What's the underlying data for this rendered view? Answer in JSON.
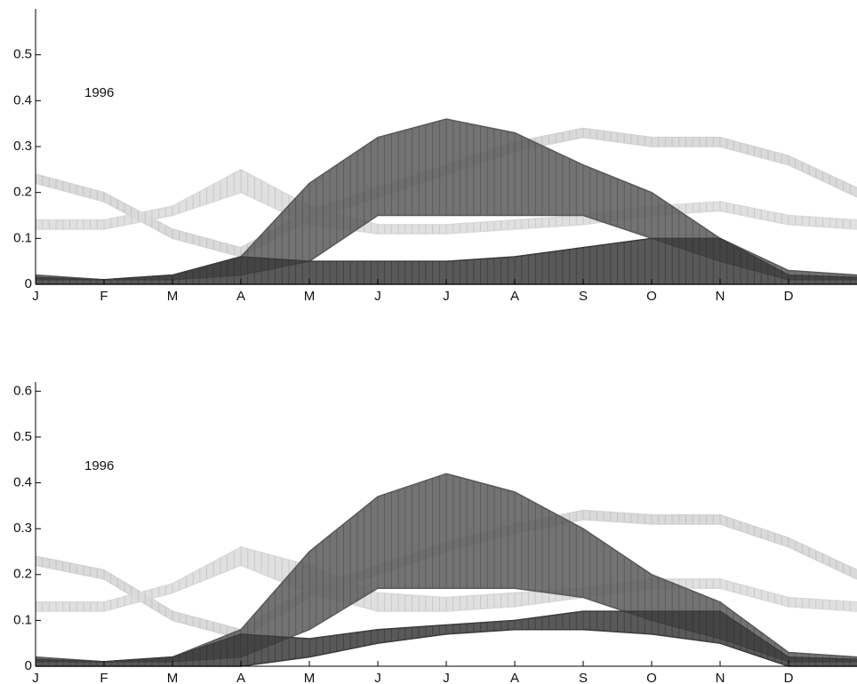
{
  "chart_data": [
    {
      "type": "band",
      "annotation": "1996",
      "xlim": [
        0,
        12
      ],
      "xticks": [
        {
          "value": 0,
          "label": "J"
        },
        {
          "value": 1,
          "label": "F"
        },
        {
          "value": 2,
          "label": "M"
        },
        {
          "value": 3,
          "label": "A"
        },
        {
          "value": 4,
          "label": "M"
        },
        {
          "value": 5,
          "label": "J"
        },
        {
          "value": 6,
          "label": "J"
        },
        {
          "value": 7,
          "label": "A"
        },
        {
          "value": 8,
          "label": "S"
        },
        {
          "value": 9,
          "label": "O"
        },
        {
          "value": 10,
          "label": "N"
        },
        {
          "value": 11,
          "label": "D"
        }
      ],
      "ylim": [
        0,
        0.6
      ],
      "yticks": [
        0,
        0.1,
        0.2,
        0.3,
        0.4,
        0.5
      ],
      "x": [
        0,
        1,
        2,
        3,
        4,
        5,
        6,
        7,
        8,
        9,
        10,
        11,
        12
      ],
      "series": [
        {
          "color": "#d4d4d4",
          "upper": [
            0.24,
            0.2,
            0.12,
            0.08,
            0.16,
            0.21,
            0.26,
            0.31,
            0.34,
            0.32,
            0.32,
            0.28,
            0.21
          ],
          "lower": [
            0.22,
            0.18,
            0.1,
            0.06,
            0.14,
            0.19,
            0.24,
            0.29,
            0.32,
            0.3,
            0.3,
            0.26,
            0.19
          ]
        },
        {
          "color": "#dadada",
          "upper": [
            0.14,
            0.14,
            0.17,
            0.25,
            0.17,
            0.13,
            0.13,
            0.14,
            0.15,
            0.17,
            0.18,
            0.15,
            0.14
          ],
          "lower": [
            0.12,
            0.12,
            0.15,
            0.2,
            0.13,
            0.11,
            0.11,
            0.12,
            0.13,
            0.15,
            0.16,
            0.13,
            0.12
          ]
        },
        {
          "color": "#5a5a5a",
          "upper": [
            0.02,
            0.01,
            0.02,
            0.06,
            0.22,
            0.32,
            0.36,
            0.33,
            0.26,
            0.2,
            0.1,
            0.03,
            0.02
          ],
          "lower": [
            0.01,
            0.01,
            0.01,
            0.02,
            0.05,
            0.15,
            0.15,
            0.15,
            0.15,
            0.1,
            0.05,
            0.01,
            0.01
          ]
        },
        {
          "color": "#3c3c3c",
          "upper": [
            0.015,
            0.01,
            0.02,
            0.06,
            0.05,
            0.05,
            0.05,
            0.06,
            0.08,
            0.1,
            0.1,
            0.02,
            0.015
          ],
          "lower": [
            0,
            0,
            0,
            0,
            0,
            0,
            0,
            0,
            0,
            0,
            0,
            0,
            0
          ]
        }
      ]
    },
    {
      "type": "band",
      "annotation": "1996",
      "xlim": [
        0,
        12
      ],
      "xticks": [
        {
          "value": 0,
          "label": "J"
        },
        {
          "value": 1,
          "label": "F"
        },
        {
          "value": 2,
          "label": "M"
        },
        {
          "value": 3,
          "label": "A"
        },
        {
          "value": 4,
          "label": "M"
        },
        {
          "value": 5,
          "label": "J"
        },
        {
          "value": 6,
          "label": "J"
        },
        {
          "value": 7,
          "label": "A"
        },
        {
          "value": 8,
          "label": "S"
        },
        {
          "value": 9,
          "label": "O"
        },
        {
          "value": 10,
          "label": "N"
        },
        {
          "value": 11,
          "label": "D"
        }
      ],
      "ylim": [
        0,
        0.62
      ],
      "yticks": [
        0,
        0.1,
        0.2,
        0.3,
        0.4,
        0.5,
        0.6
      ],
      "x": [
        0,
        1,
        2,
        3,
        4,
        5,
        6,
        7,
        8,
        9,
        10,
        11,
        12
      ],
      "series": [
        {
          "color": "#d4d4d4",
          "upper": [
            0.24,
            0.21,
            0.12,
            0.08,
            0.17,
            0.22,
            0.27,
            0.31,
            0.34,
            0.33,
            0.33,
            0.28,
            0.21
          ],
          "lower": [
            0.22,
            0.19,
            0.1,
            0.06,
            0.15,
            0.2,
            0.25,
            0.29,
            0.32,
            0.31,
            0.31,
            0.26,
            0.19
          ]
        },
        {
          "color": "#dadada",
          "upper": [
            0.14,
            0.14,
            0.18,
            0.26,
            0.22,
            0.16,
            0.15,
            0.16,
            0.17,
            0.19,
            0.19,
            0.15,
            0.14
          ],
          "lower": [
            0.12,
            0.12,
            0.16,
            0.22,
            0.16,
            0.12,
            0.12,
            0.13,
            0.15,
            0.17,
            0.17,
            0.13,
            0.12
          ]
        },
        {
          "color": "#5a5a5a",
          "upper": [
            0.02,
            0.01,
            0.02,
            0.08,
            0.25,
            0.37,
            0.42,
            0.38,
            0.3,
            0.2,
            0.14,
            0.03,
            0.02
          ],
          "lower": [
            0.01,
            0.01,
            0.01,
            0.02,
            0.08,
            0.17,
            0.17,
            0.17,
            0.15,
            0.1,
            0.06,
            0.01,
            0.01
          ]
        },
        {
          "color": "#3c3c3c",
          "upper": [
            0.015,
            0.01,
            0.02,
            0.07,
            0.06,
            0.08,
            0.09,
            0.1,
            0.12,
            0.12,
            0.12,
            0.02,
            0.015
          ],
          "lower": [
            0,
            0,
            0,
            0,
            0.02,
            0.05,
            0.07,
            0.08,
            0.08,
            0.07,
            0.05,
            0,
            0
          ]
        }
      ]
    }
  ]
}
